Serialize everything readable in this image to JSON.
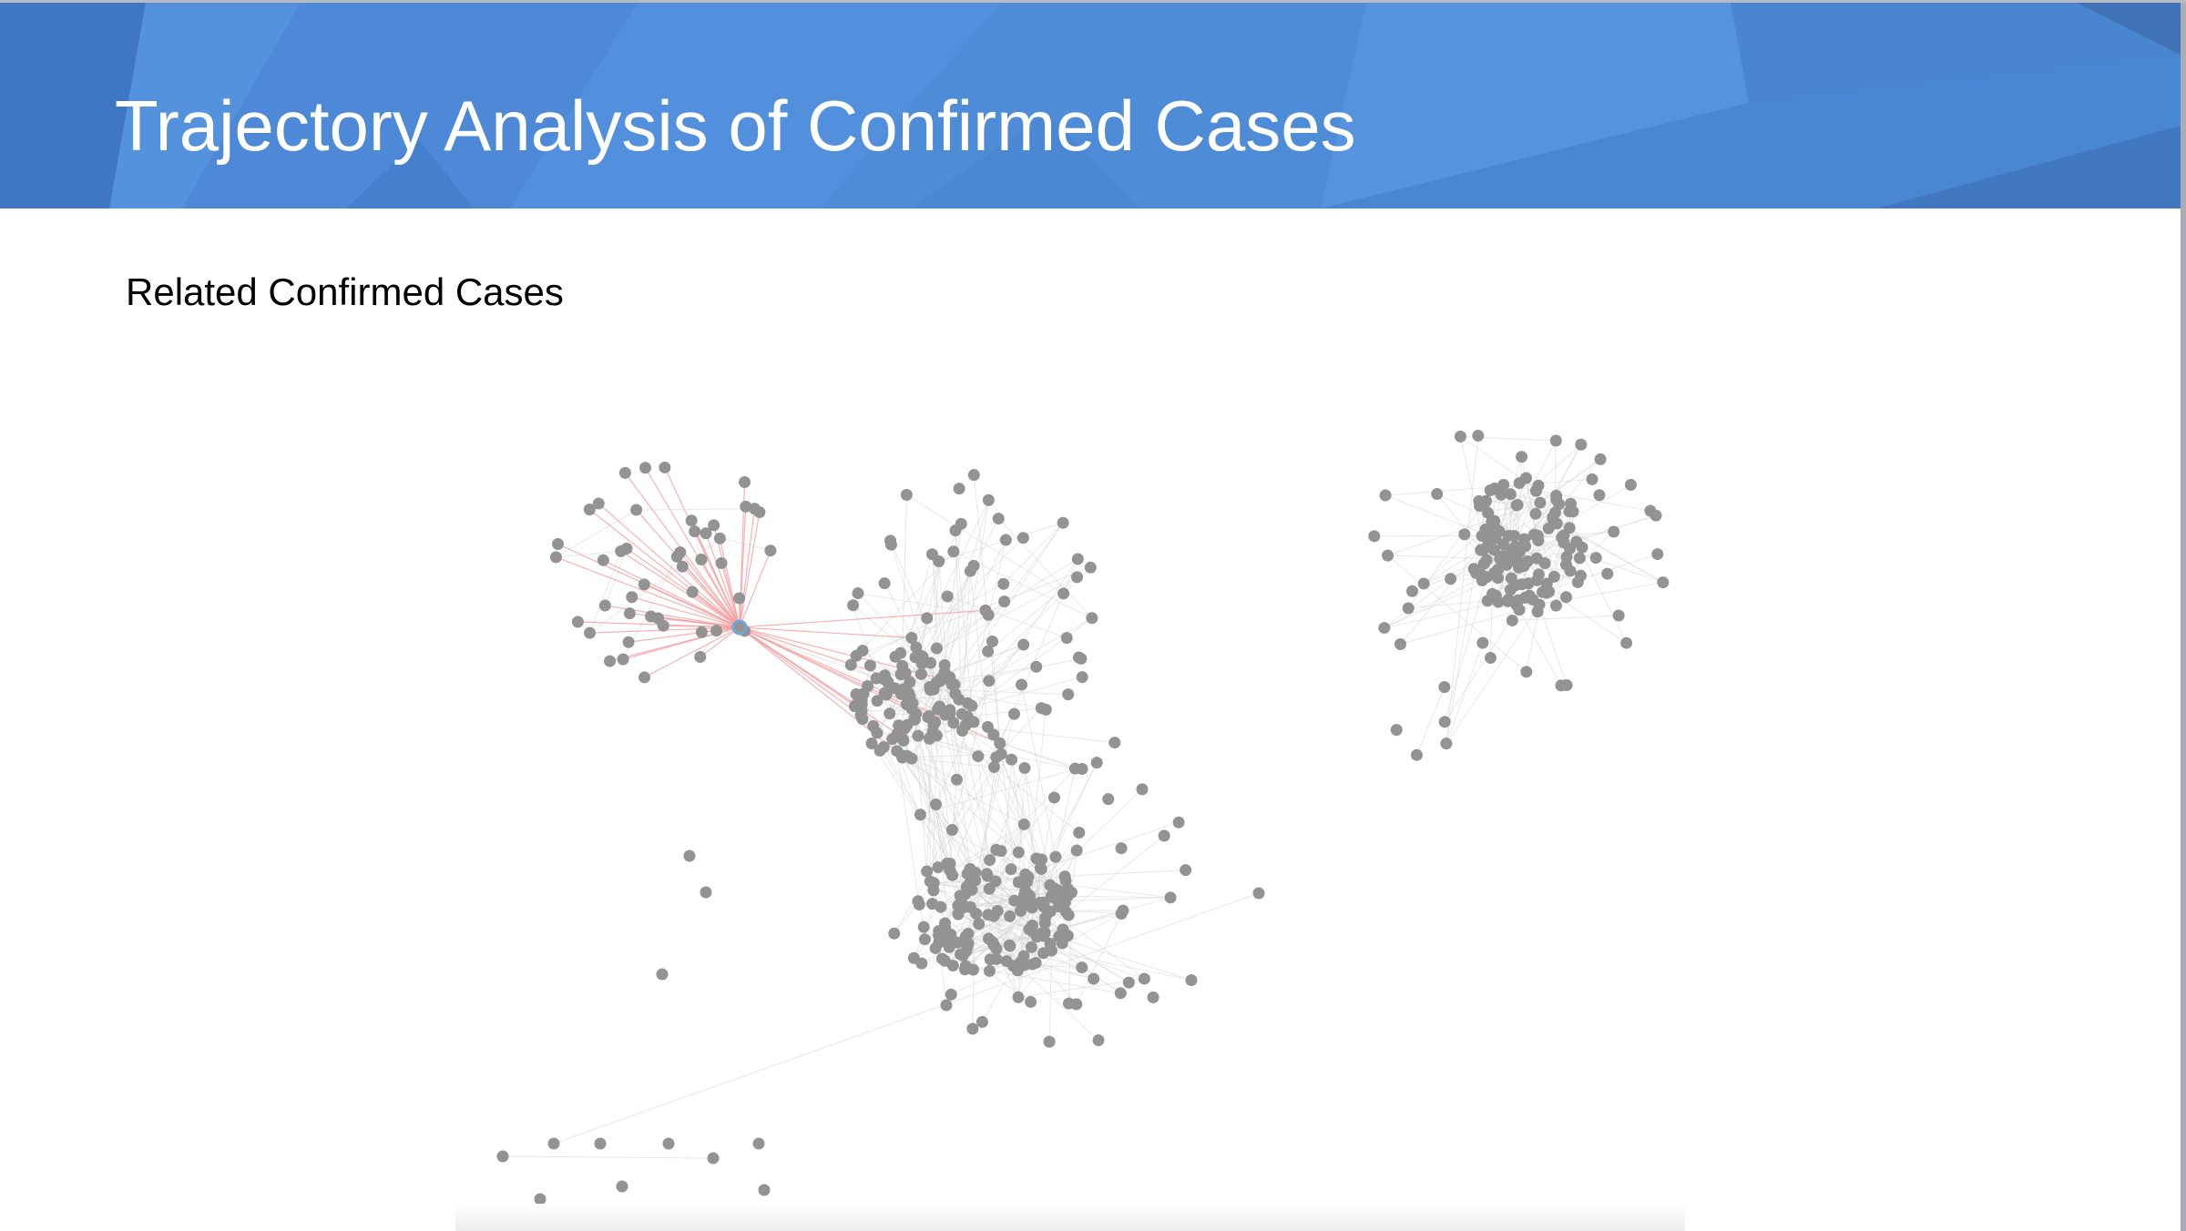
{
  "header": {
    "title": "Trajectory Analysis of Confirmed Cases",
    "background_color": "#4a86d4"
  },
  "section": {
    "subtitle": "Related Confirmed Cases"
  },
  "graph": {
    "node_color": "#939393",
    "edge_color": "#d9d9d9",
    "highlight_edge_color": "#f4a0a0",
    "selected_node_color": "#6fa8dc"
  }
}
